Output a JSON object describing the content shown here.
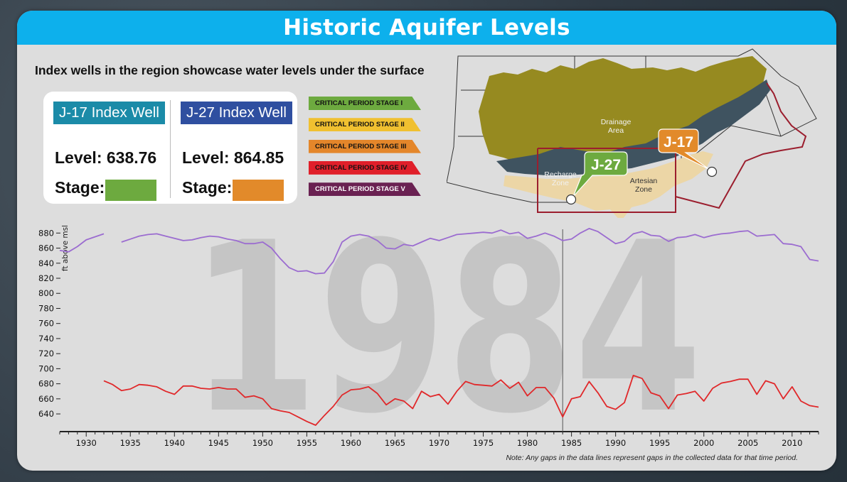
{
  "title": "Historic Aquifer Levels",
  "subtitle": "Index wells in the region showcase water levels under the surface",
  "wells": [
    {
      "name": "J-17 Index Well",
      "level": "Level: 638.76",
      "stage_label": "Stage:",
      "stage_color": "#6daa3f",
      "label_color": "#1b8ba8"
    },
    {
      "name": "J-27 Index Well",
      "level": "Level: 864.85",
      "stage_label": "Stage:",
      "stage_color": "#e28a2a",
      "label_color": "#2f4fa0"
    }
  ],
  "legend": [
    {
      "label": "CRITICAL PERIOD STAGE I",
      "color": "#6daa3f"
    },
    {
      "label": "CRITICAL PERIOD STAGE II",
      "color": "#f0c030"
    },
    {
      "label": "CRITICAL PERIOD STAGE III",
      "color": "#e4862a"
    },
    {
      "label": "CRITICAL PERIOD STAGE IV",
      "color": "#e01f2a"
    },
    {
      "label": "CRITICAL PERIOD STAGE V",
      "color": "#6a2152"
    }
  ],
  "map": {
    "drainage_label": [
      "Drainage",
      "Area"
    ],
    "recharge_label": [
      "Recharge",
      "Zone"
    ],
    "artesian_label": [
      "Artesian",
      "Zone"
    ],
    "j17_tag": "J-17",
    "j27_tag": "J-27"
  },
  "note": "Note: Any gaps in the data lines represent gaps in the collected data for that time period.",
  "chart_data": {
    "type": "line",
    "ylabel": "ft above msl",
    "xlim": [
      1927,
      2013
    ],
    "ylim": [
      625,
      885
    ],
    "yticks": [
      640,
      660,
      680,
      700,
      720,
      740,
      760,
      780,
      800,
      820,
      840,
      860,
      880
    ],
    "xticks": [
      1930,
      1935,
      1940,
      1945,
      1950,
      1955,
      1960,
      1965,
      1970,
      1975,
      1980,
      1985,
      1990,
      1995,
      2000,
      2005,
      2010
    ],
    "current_year": "1984",
    "series": [
      {
        "name": "J-27",
        "color": "#9b6cd0",
        "segments": [
          [
            [
              1927,
              857
            ],
            [
              1928,
              855
            ],
            [
              1929,
              862
            ],
            [
              1930,
              871
            ],
            [
              1931,
              875
            ],
            [
              1932,
              879
            ]
          ],
          [
            [
              1934,
              868
            ],
            [
              1935,
              872
            ],
            [
              1936,
              876
            ],
            [
              1937,
              878
            ],
            [
              1938,
              879
            ],
            [
              1939,
              876
            ],
            [
              1940,
              873
            ],
            [
              1941,
              870
            ],
            [
              1942,
              871
            ],
            [
              1943,
              874
            ],
            [
              1944,
              876
            ],
            [
              1945,
              875
            ],
            [
              1946,
              872
            ],
            [
              1947,
              870
            ],
            [
              1948,
              866
            ],
            [
              1949,
              866
            ],
            [
              1950,
              868
            ],
            [
              1951,
              860
            ],
            [
              1952,
              846
            ],
            [
              1953,
              834
            ],
            [
              1954,
              829
            ],
            [
              1955,
              830
            ],
            [
              1956,
              826
            ],
            [
              1957,
              827
            ],
            [
              1958,
              842
            ],
            [
              1959,
              868
            ],
            [
              1960,
              876
            ],
            [
              1961,
              878
            ],
            [
              1962,
              876
            ],
            [
              1963,
              870
            ],
            [
              1964,
              860
            ],
            [
              1965,
              859
            ],
            [
              1966,
              865
            ],
            [
              1967,
              863
            ],
            [
              1968,
              868
            ],
            [
              1969,
              873
            ],
            [
              1970,
              870
            ],
            [
              1971,
              874
            ],
            [
              1972,
              878
            ],
            [
              1973,
              879
            ],
            [
              1974,
              880
            ],
            [
              1975,
              881
            ],
            [
              1976,
              880
            ],
            [
              1977,
              884
            ],
            [
              1978,
              879
            ],
            [
              1979,
              881
            ],
            [
              1980,
              873
            ],
            [
              1981,
              876
            ],
            [
              1982,
              880
            ],
            [
              1983,
              876
            ],
            [
              1984,
              870
            ],
            [
              1985,
              872
            ],
            [
              1986,
              880
            ],
            [
              1987,
              886
            ],
            [
              1988,
              882
            ],
            [
              1989,
              874
            ],
            [
              1990,
              866
            ],
            [
              1991,
              869
            ],
            [
              1992,
              879
            ],
            [
              1993,
              882
            ],
            [
              1994,
              877
            ],
            [
              1995,
              876
            ],
            [
              1996,
              869
            ],
            [
              1997,
              874
            ],
            [
              1998,
              875
            ],
            [
              1999,
              878
            ],
            [
              2000,
              874
            ],
            [
              2001,
              877
            ],
            [
              2002,
              879
            ],
            [
              2003,
              880
            ],
            [
              2004,
              882
            ],
            [
              2005,
              883
            ],
            [
              2006,
              876
            ],
            [
              2007,
              877
            ],
            [
              2008,
              878
            ],
            [
              2009,
              866
            ],
            [
              2010,
              865
            ],
            [
              2011,
              862
            ],
            [
              2012,
              845
            ],
            [
              2013,
              843
            ]
          ]
        ]
      },
      {
        "name": "J-17",
        "color": "#e0282a",
        "segments": [
          [
            [
              1932,
              684
            ],
            [
              1933,
              679
            ],
            [
              1934,
              671
            ],
            [
              1935,
              673
            ],
            [
              1936,
              679
            ],
            [
              1937,
              678
            ],
            [
              1938,
              676
            ],
            [
              1939,
              670
            ],
            [
              1940,
              666
            ],
            [
              1941,
              677
            ],
            [
              1942,
              677
            ],
            [
              1943,
              674
            ],
            [
              1944,
              673
            ],
            [
              1945,
              675
            ],
            [
              1946,
              673
            ],
            [
              1947,
              673
            ],
            [
              1948,
              662
            ],
            [
              1949,
              664
            ],
            [
              1950,
              660
            ],
            [
              1951,
              647
            ],
            [
              1952,
              644
            ],
            [
              1953,
              642
            ],
            [
              1954,
              636
            ],
            [
              1955,
              630
            ],
            [
              1956,
              625
            ],
            [
              1957,
              638
            ],
            [
              1958,
              650
            ],
            [
              1959,
              665
            ],
            [
              1960,
              672
            ],
            [
              1961,
              673
            ],
            [
              1962,
              676
            ],
            [
              1963,
              667
            ],
            [
              1964,
              652
            ],
            [
              1965,
              660
            ],
            [
              1966,
              657
            ],
            [
              1967,
              647
            ],
            [
              1968,
              670
            ],
            [
              1969,
              663
            ],
            [
              1970,
              666
            ],
            [
              1971,
              653
            ],
            [
              1972,
              670
            ],
            [
              1973,
              683
            ],
            [
              1974,
              679
            ],
            [
              1975,
              678
            ],
            [
              1976,
              677
            ],
            [
              1977,
              685
            ],
            [
              1978,
              674
            ],
            [
              1979,
              682
            ],
            [
              1980,
              664
            ],
            [
              1981,
              675
            ],
            [
              1982,
              675
            ],
            [
              1983,
              661
            ],
            [
              1984,
              636
            ],
            [
              1985,
              660
            ],
            [
              1986,
              663
            ],
            [
              1987,
              683
            ],
            [
              1988,
              668
            ],
            [
              1989,
              650
            ],
            [
              1990,
              646
            ],
            [
              1991,
              655
            ],
            [
              1992,
              691
            ],
            [
              1993,
              687
            ],
            [
              1994,
              668
            ],
            [
              1995,
              664
            ],
            [
              1996,
              647
            ],
            [
              1997,
              665
            ],
            [
              1998,
              667
            ],
            [
              1999,
              670
            ],
            [
              2000,
              657
            ],
            [
              2001,
              674
            ],
            [
              2002,
              681
            ],
            [
              2003,
              683
            ],
            [
              2004,
              686
            ],
            [
              2005,
              686
            ],
            [
              2006,
              666
            ],
            [
              2007,
              684
            ],
            [
              2008,
              680
            ],
            [
              2009,
              660
            ],
            [
              2010,
              676
            ],
            [
              2011,
              657
            ],
            [
              2012,
              651
            ],
            [
              2013,
              649
            ]
          ]
        ]
      }
    ]
  }
}
